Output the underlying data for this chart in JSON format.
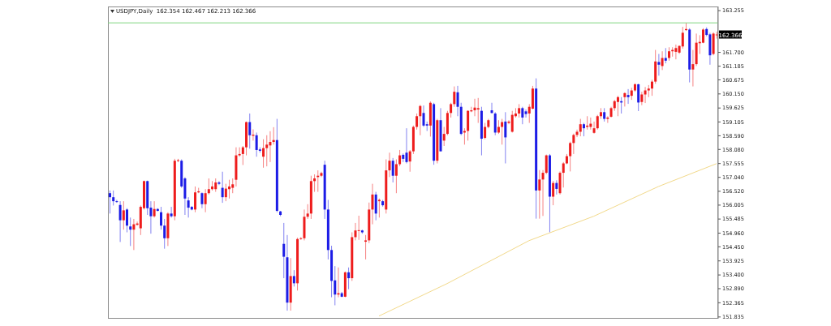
{
  "chart_data": {
    "type": "candlestick",
    "title": "USDJPY,Daily  162.354 162.467 162.213 162.366",
    "categories": [
      null,
      null,
      null,
      null,
      null,
      null,
      null,
      null,
      null,
      null,
      null,
      null,
      null,
      null,
      null,
      null,
      null,
      null,
      null,
      null,
      null,
      null,
      null,
      null,
      null,
      null,
      null,
      null,
      null,
      null,
      null,
      null,
      null,
      null,
      null,
      null,
      null,
      null,
      null,
      null,
      null,
      null,
      null,
      null,
      null,
      null,
      null,
      null,
      null,
      null,
      null,
      null,
      null,
      null,
      null,
      null,
      null,
      null,
      null,
      null,
      null,
      null,
      null,
      null,
      null,
      null,
      null,
      null,
      null,
      null,
      null,
      null,
      null,
      null,
      null,
      null,
      null,
      null,
      null,
      null,
      null,
      null,
      null,
      null,
      null,
      null,
      null,
      null,
      null,
      null,
      null,
      null,
      null,
      null,
      null,
      null,
      null,
      null,
      null,
      null,
      null,
      null,
      null,
      null,
      null,
      null,
      null,
      null,
      null,
      null,
      null,
      null,
      null,
      null,
      null,
      null,
      null,
      null,
      null,
      null,
      null,
      null,
      null,
      null,
      null,
      null,
      null,
      null,
      null,
      null,
      null,
      null,
      null,
      null,
      null,
      null,
      null,
      null,
      null,
      null,
      null,
      null,
      null,
      null,
      null,
      null,
      null,
      null,
      null,
      null,
      null,
      null,
      null,
      null,
      null,
      null,
      null,
      null,
      null,
      null,
      null,
      null,
      null,
      null,
      null,
      null,
      null,
      null,
      null,
      null,
      null,
      null,
      null,
      null,
      null,
      null,
      null,
      null,
      null
    ],
    "ohlc": [
      [
        156.45,
        156.55,
        155.69,
        156.3
      ],
      [
        156.3,
        156.55,
        155.99,
        156.15
      ],
      [
        156.15,
        156.2,
        156.09,
        156.14
      ],
      [
        156.01,
        156.15,
        154.63,
        155.44
      ],
      [
        155.44,
        156.15,
        155.09,
        155.81
      ],
      [
        155.84,
        155.89,
        154.99,
        155.24
      ],
      [
        155.21,
        155.54,
        154.48,
        155.09
      ],
      [
        155.09,
        155.49,
        154.33,
        155.29
      ],
      [
        155.27,
        155.39,
        155.24,
        155.32
      ],
      [
        155.14,
        155.99,
        154.89,
        155.94
      ],
      [
        155.89,
        156.92,
        155.84,
        156.9
      ],
      [
        156.9,
        156.92,
        155.64,
        155.89
      ],
      [
        155.91,
        156.15,
        154.94,
        155.59
      ],
      [
        155.59,
        156.15,
        155.54,
        155.86
      ],
      [
        155.86,
        155.89,
        155.77,
        155.79
      ],
      [
        155.74,
        155.94,
        155.09,
        155.24
      ],
      [
        155.24,
        155.49,
        154.38,
        154.77
      ],
      [
        154.77,
        155.74,
        154.48,
        155.69
      ],
      [
        155.69,
        155.94,
        155.54,
        155.59
      ],
      [
        155.59,
        157.73,
        155.44,
        157.66
      ],
      [
        157.66,
        157.73,
        157.61,
        157.68
      ],
      [
        157.66,
        157.71,
        156.65,
        156.7
      ],
      [
        157.0,
        157.05,
        155.64,
        156.25
      ],
      [
        156.18,
        156.3,
        155.54,
        155.91
      ],
      [
        155.94,
        155.97,
        155.81,
        155.84
      ],
      [
        155.84,
        156.7,
        155.74,
        156.48
      ],
      [
        156.48,
        156.65,
        156.45,
        156.52
      ],
      [
        156.45,
        156.48,
        155.89,
        156.04
      ],
      [
        156.04,
        156.6,
        155.74,
        156.45
      ],
      [
        156.45,
        157.0,
        156.4,
        156.6
      ],
      [
        156.6,
        156.9,
        156.55,
        156.7
      ],
      [
        156.6,
        157.0,
        156.5,
        156.85
      ],
      [
        156.85,
        156.9,
        156.75,
        156.8
      ],
      [
        156.65,
        157.25,
        156.09,
        156.3
      ],
      [
        156.3,
        156.8,
        156.15,
        156.62
      ],
      [
        156.6,
        156.95,
        156.25,
        156.7
      ],
      [
        156.65,
        157.0,
        156.45,
        156.78
      ],
      [
        156.95,
        158.16,
        156.7,
        157.86
      ],
      [
        157.86,
        158.16,
        157.81,
        157.91
      ],
      [
        157.91,
        158.21,
        157.5,
        158.16
      ],
      [
        158.16,
        159.12,
        157.86,
        159.1
      ],
      [
        159.1,
        159.42,
        158.11,
        158.61
      ],
      [
        158.59,
        158.83,
        158.41,
        158.63
      ],
      [
        158.61,
        158.71,
        157.81,
        158.06
      ],
      [
        158.08,
        158.16,
        157.96,
        158.03
      ],
      [
        157.81,
        158.46,
        157.4,
        158.13
      ],
      [
        158.13,
        158.61,
        157.45,
        158.26
      ],
      [
        158.23,
        158.76,
        157.61,
        158.36
      ],
      [
        158.36,
        158.91,
        158.26,
        158.43
      ],
      [
        158.43,
        159.22,
        155.74,
        155.79
      ],
      [
        155.77,
        155.79,
        155.59,
        155.64
      ],
      [
        154.56,
        155.34,
        153.28,
        154.08
      ],
      [
        154.06,
        154.89,
        152.07,
        152.37
      ],
      [
        152.37,
        154.03,
        152.07,
        153.36
      ],
      [
        153.36,
        153.58,
        152.97,
        153.09
      ],
      [
        153.09,
        154.79,
        152.82,
        154.74
      ],
      [
        154.74,
        154.81,
        154.71,
        154.77
      ],
      [
        154.77,
        155.84,
        154.69,
        155.57
      ],
      [
        155.57,
        156.04,
        155.49,
        155.69
      ],
      [
        155.69,
        157.1,
        155.49,
        156.9
      ],
      [
        156.9,
        157.15,
        156.5,
        157.0
      ],
      [
        157.05,
        157.3,
        156.5,
        157.1
      ],
      [
        157.1,
        157.25,
        157.05,
        157.2
      ],
      [
        157.51,
        157.66,
        155.49,
        155.84
      ],
      [
        155.84,
        156.2,
        153.98,
        154.33
      ],
      [
        154.33,
        154.49,
        152.57,
        153.18
      ],
      [
        153.2,
        153.73,
        152.27,
        152.67
      ],
      [
        152.67,
        153.68,
        152.57,
        152.72
      ],
      [
        152.72,
        152.77,
        152.57,
        152.59
      ],
      [
        152.59,
        153.53,
        152.57,
        153.5
      ],
      [
        153.5,
        153.68,
        152.87,
        153.28
      ],
      [
        153.28,
        154.99,
        153.18,
        154.81
      ],
      [
        154.81,
        155.34,
        154.69,
        155.06
      ],
      [
        155.06,
        155.61,
        154.71,
        155.07
      ],
      [
        155.06,
        155.09,
        154.94,
        154.99
      ],
      [
        154.64,
        154.89,
        153.98,
        154.69
      ],
      [
        154.69,
        156.1,
        154.59,
        155.84
      ],
      [
        155.84,
        156.8,
        155.29,
        156.4
      ],
      [
        156.4,
        156.5,
        155.44,
        155.69
      ],
      [
        156.15,
        156.25,
        155.54,
        156.2
      ],
      [
        156.15,
        156.2,
        155.95,
        156.0
      ],
      [
        155.84,
        157.71,
        155.69,
        157.3
      ],
      [
        157.3,
        157.96,
        157.05,
        157.66
      ],
      [
        157.66,
        157.76,
        156.85,
        157.1
      ],
      [
        157.1,
        157.71,
        156.45,
        157.53
      ],
      [
        157.53,
        158.06,
        157.46,
        157.86
      ],
      [
        157.88,
        157.93,
        157.61,
        157.73
      ],
      [
        157.96,
        158.87,
        157.56,
        157.61
      ],
      [
        157.63,
        158.06,
        157.25,
        158.01
      ],
      [
        158.01,
        158.97,
        157.91,
        158.92
      ],
      [
        158.92,
        159.42,
        158.82,
        159.32
      ],
      [
        159.32,
        159.74,
        158.61,
        159.7
      ],
      [
        159.44,
        159.72,
        158.92,
        158.97
      ],
      [
        159.02,
        159.12,
        158.77,
        158.97
      ],
      [
        158.97,
        159.87,
        158.56,
        159.82
      ],
      [
        159.77,
        159.82,
        157.51,
        157.66
      ],
      [
        157.66,
        159.22,
        157.56,
        159.17
      ],
      [
        159.17,
        159.62,
        158.01,
        158.01
      ],
      [
        158.41,
        158.92,
        158.21,
        158.66
      ],
      [
        158.66,
        159.52,
        158.61,
        159.44
      ],
      [
        159.44,
        159.82,
        159.27,
        159.77
      ],
      [
        159.77,
        160.43,
        159.67,
        160.23
      ],
      [
        160.21,
        160.45,
        159.32,
        159.67
      ],
      [
        159.67,
        159.82,
        158.61,
        158.66
      ],
      [
        158.71,
        158.87,
        158.26,
        158.77
      ],
      [
        158.77,
        159.54,
        158.41,
        159.52
      ],
      [
        159.5,
        159.67,
        159.47,
        159.54
      ],
      [
        159.54,
        159.97,
        159.32,
        159.64
      ],
      [
        159.57,
        160.0,
        159.07,
        159.62
      ],
      [
        159.52,
        159.67,
        157.86,
        158.48
      ],
      [
        158.51,
        159.07,
        158.46,
        158.92
      ],
      [
        158.92,
        159.22,
        158.87,
        159.17
      ],
      [
        159.54,
        159.82,
        159.42,
        159.44
      ],
      [
        159.42,
        159.47,
        158.61,
        158.71
      ],
      [
        158.71,
        159.17,
        158.66,
        158.92
      ],
      [
        158.92,
        159.22,
        158.26,
        159.1
      ],
      [
        159.12,
        159.47,
        157.56,
        158.53
      ],
      [
        159.07,
        159.17,
        159.02,
        159.12
      ],
      [
        158.74,
        159.52,
        158.71,
        159.37
      ],
      [
        159.32,
        159.62,
        159.27,
        159.42
      ],
      [
        159.42,
        159.77,
        159.27,
        159.62
      ],
      [
        159.62,
        159.67,
        159.02,
        159.27
      ],
      [
        159.5,
        159.57,
        159.27,
        159.4
      ],
      [
        159.42,
        159.77,
        159.07,
        159.67
      ],
      [
        159.6,
        160.45,
        159.58,
        160.35
      ],
      [
        160.35,
        160.73,
        155.5,
        156.55
      ],
      [
        156.55,
        157.31,
        155.5,
        156.96
      ],
      [
        156.96,
        157.31,
        155.6,
        157.21
      ],
      [
        157.21,
        157.89,
        157.16,
        157.86
      ],
      [
        157.86,
        157.91,
        154.99,
        156.32
      ],
      [
        156.32,
        156.91,
        156.0,
        156.83
      ],
      [
        156.83,
        156.93,
        156.4,
        156.61
      ],
      [
        156.45,
        157.26,
        156.4,
        157.21
      ],
      [
        157.21,
        157.61,
        156.66,
        157.56
      ],
      [
        157.56,
        157.91,
        157.53,
        157.83
      ],
      [
        157.83,
        158.37,
        157.26,
        158.32
      ],
      [
        158.32,
        158.67,
        157.91,
        158.62
      ],
      [
        158.62,
        158.82,
        158.54,
        158.74
      ],
      [
        158.74,
        159.22,
        158.57,
        159.02
      ],
      [
        159.02,
        159.07,
        158.57,
        158.87
      ],
      [
        158.92,
        159.32,
        158.82,
        158.97
      ],
      [
        158.92,
        159.27,
        158.82,
        159.04
      ],
      [
        158.7,
        159.12,
        158.67,
        158.87
      ],
      [
        158.87,
        159.37,
        158.82,
        159.32
      ],
      [
        159.32,
        159.62,
        159.22,
        159.47
      ],
      [
        159.47,
        159.62,
        159.12,
        159.22
      ],
      [
        159.22,
        159.32,
        159.07,
        159.27
      ],
      [
        159.3,
        159.67,
        159.27,
        159.62
      ],
      [
        159.62,
        159.93,
        159.52,
        159.88
      ],
      [
        159.85,
        160.08,
        159.32,
        160.03
      ],
      [
        159.88,
        160.03,
        159.42,
        159.83
      ],
      [
        160.03,
        160.21,
        159.68,
        160.18
      ],
      [
        160.11,
        160.33,
        159.78,
        160.03
      ],
      [
        160.08,
        160.38,
        159.93,
        160.28
      ],
      [
        160.28,
        160.55,
        160.23,
        160.51
      ],
      [
        160.51,
        160.53,
        159.51,
        159.83
      ],
      [
        159.85,
        160.23,
        159.73,
        160.13
      ],
      [
        160.13,
        160.41,
        159.81,
        160.28
      ],
      [
        160.28,
        160.48,
        160.03,
        160.35
      ],
      [
        160.35,
        160.68,
        160.08,
        160.61
      ],
      [
        160.61,
        161.79,
        160.53,
        161.36
      ],
      [
        161.34,
        161.64,
        160.83,
        161.24
      ],
      [
        161.19,
        161.74,
        161.04,
        161.49
      ],
      [
        161.49,
        161.86,
        161.29,
        161.39
      ],
      [
        161.49,
        161.89,
        161.39,
        161.74
      ],
      [
        161.74,
        161.89,
        161.54,
        161.79
      ],
      [
        161.72,
        161.99,
        161.44,
        161.86
      ],
      [
        161.69,
        161.96,
        161.64,
        161.94
      ],
      [
        161.92,
        162.65,
        161.84,
        162.43
      ],
      [
        162.53,
        162.8,
        162.5,
        162.57
      ],
      [
        162.55,
        162.6,
        160.58,
        161.06
      ],
      [
        161.06,
        161.79,
        160.43,
        161.26
      ],
      [
        161.26,
        162.4,
        161.19,
        162.06
      ],
      [
        162.04,
        162.34,
        161.64,
        162.09
      ],
      [
        162.06,
        162.6,
        162.04,
        162.55
      ],
      [
        162.57,
        162.63,
        162.3,
        162.35
      ],
      [
        162.37,
        162.43,
        161.24,
        161.59
      ],
      [
        161.64,
        162.45,
        161.59,
        162.4
      ],
      [
        162.354,
        162.467,
        162.213,
        162.366
      ]
    ],
    "colors": [
      "#1c1ce6",
      "#1c1ce6",
      "#1c1ce6",
      "#1c1ce6",
      "#ee1c1c",
      "#1c1ce6",
      "#1c1ce6",
      "#ee1c1c",
      "#ee1c1c",
      "#ee1c1c",
      "#ee1c1c",
      "#1c1ce6",
      "#1c1ce6",
      "#ee1c1c",
      "#1c1ce6",
      "#1c1ce6",
      "#1c1ce6",
      "#ee1c1c",
      "#1c1ce6",
      "#ee1c1c",
      "#ee1c1c",
      "#1c1ce6",
      "#1c1ce6",
      "#1c1ce6",
      "#1c1ce6",
      "#ee1c1c",
      "#ee1c1c",
      "#1c1ce6",
      "#ee1c1c",
      "#ee1c1c",
      "#ee1c1c",
      "#ee1c1c",
      "#1c1ce6",
      "#1c1ce6",
      "#ee1c1c",
      "#ee1c1c",
      "#ee1c1c",
      "#ee1c1c",
      "#ee1c1c",
      "#ee1c1c",
      "#ee1c1c",
      "#1c1ce6",
      "#ee1c1c",
      "#1c1ce6",
      "#1c1ce6",
      "#ee1c1c",
      "#ee1c1c",
      "#ee1c1c",
      "#ee1c1c",
      "#1c1ce6",
      "#1c1ce6",
      "#1c1ce6",
      "#1c1ce6",
      "#ee1c1c",
      "#1c1ce6",
      "#ee1c1c",
      "#ee1c1c",
      "#ee1c1c",
      "#ee1c1c",
      "#ee1c1c",
      "#ee1c1c",
      "#ee1c1c",
      "#ee1c1c",
      "#1c1ce6",
      "#1c1ce6",
      "#1c1ce6",
      "#1c1ce6",
      "#ee1c1c",
      "#1c1ce6",
      "#ee1c1c",
      "#1c1ce6",
      "#ee1c1c",
      "#ee1c1c",
      "#ee1c1c",
      "#1c1ce6",
      "#ee1c1c",
      "#ee1c1c",
      "#ee1c1c",
      "#1c1ce6",
      "#ee1c1c",
      "#1c1ce6",
      "#ee1c1c",
      "#ee1c1c",
      "#1c1ce6",
      "#ee1c1c",
      "#ee1c1c",
      "#1c1ce6",
      "#1c1ce6",
      "#ee1c1c",
      "#ee1c1c",
      "#ee1c1c",
      "#ee1c1c",
      "#1c1ce6",
      "#1c1ce6",
      "#ee1c1c",
      "#1c1ce6",
      "#ee1c1c",
      "#1c1ce6",
      "#ee1c1c",
      "#ee1c1c",
      "#ee1c1c",
      "#ee1c1c",
      "#1c1ce6",
      "#1c1ce6",
      "#ee1c1c",
      "#ee1c1c",
      "#ee1c1c",
      "#ee1c1c",
      "#ee1c1c",
      "#1c1ce6",
      "#ee1c1c",
      "#ee1c1c",
      "#1c1ce6",
      "#1c1ce6",
      "#ee1c1c",
      "#ee1c1c",
      "#1c1ce6",
      "#ee1c1c",
      "#ee1c1c",
      "#ee1c1c",
      "#ee1c1c",
      "#1c1ce6",
      "#1c1ce6",
      "#ee1c1c",
      "#ee1c1c",
      "#1c1ce6",
      "#ee1c1c",
      "#ee1c1c",
      "#ee1c1c",
      "#1c1ce6",
      "#ee1c1c",
      "#1c1ce6",
      "#ee1c1c",
      "#ee1c1c",
      "#ee1c1c",
      "#ee1c1c",
      "#ee1c1c",
      "#ee1c1c",
      "#ee1c1c",
      "#1c1ce6",
      "#ee1c1c",
      "#ee1c1c",
      "#ee1c1c",
      "#ee1c1c",
      "#ee1c1c",
      "#1c1ce6",
      "#ee1c1c",
      "#ee1c1c",
      "#ee1c1c",
      "#ee1c1c",
      "#1c1ce6",
      "#ee1c1c",
      "#1c1ce6",
      "#ee1c1c",
      "#ee1c1c",
      "#1c1ce6",
      "#ee1c1c",
      "#ee1c1c",
      "#ee1c1c",
      "#ee1c1c",
      "#ee1c1c",
      "#1c1ce6",
      "#ee1c1c",
      "#1c1ce6",
      "#ee1c1c",
      "#ee1c1c",
      "#ee1c1c",
      "#ee1c1c",
      "#ee1c1c",
      "#ee1c1c",
      "#1c1ce6",
      "#ee1c1c",
      "#ee1c1c",
      "#ee1c1c",
      "#ee1c1c",
      "#1c1ce6",
      "#1c1ce6",
      "#ee1c1c",
      "#ee1c1c"
    ],
    "series": [
      {
        "type": "line",
        "color": "#f2d98a",
        "values": [
          null,
          null,
          null,
          null,
          null,
          null,
          null,
          null,
          null,
          null,
          null,
          null,
          null,
          null,
          null,
          null,
          null,
          null,
          null,
          null,
          null,
          null,
          null,
          null,
          null,
          null,
          null,
          null,
          null,
          null,
          null,
          null,
          null,
          null,
          null,
          null,
          null,
          null,
          null,
          null,
          null,
          null,
          null,
          null,
          null,
          null,
          null,
          null,
          null,
          null,
          null,
          null,
          null,
          null,
          null,
          null,
          null,
          null,
          null,
          null,
          null,
          null,
          null,
          null,
          null,
          null,
          null,
          null,
          null,
          null,
          null,
          null,
          null,
          null,
          null,
          null,
          null,
          null,
          null,
          151.87,
          null,
          null,
          null,
          null,
          null,
          null,
          null,
          null,
          null,
          null,
          null,
          null,
          null,
          null,
          null,
          null,
          null,
          null,
          null,
          153.08,
          null,
          null,
          null,
          null,
          null,
          null,
          null,
          null,
          null,
          null,
          null,
          null,
          null,
          null,
          null,
          null,
          null,
          null,
          null,
          null,
          null,
          null,
          null,
          154.68,
          null,
          null,
          null,
          null,
          null,
          null,
          null,
          null,
          null,
          null,
          null,
          null,
          null,
          null,
          null,
          null,
          null,
          null,
          155.59,
          null,
          null,
          null,
          null,
          null,
          null,
          null,
          null,
          null,
          null,
          null,
          null,
          null,
          null,
          null,
          null,
          null,
          null,
          156.7,
          null,
          null,
          null,
          null,
          null,
          null,
          null,
          null,
          null,
          null,
          null,
          null,
          null,
          null,
          null,
          null,
          157.55
        ]
      }
    ],
    "ref_lines": [
      {
        "axis": "y",
        "value": 162.8,
        "color": "#7fd67f"
      }
    ],
    "annotations": [
      {
        "text": "162.366",
        "y": 162.366
      }
    ],
    "ylim": [
      151.77,
      163.41
    ],
    "yticks": [
      {
        "value": 151.835,
        "label": "151.835"
      },
      {
        "value": 152.365,
        "label": "152.365"
      },
      {
        "value": 152.89,
        "label": "152.890"
      },
      {
        "value": 153.4,
        "label": "153.400"
      },
      {
        "value": 153.925,
        "label": "153.925"
      },
      {
        "value": 154.45,
        "label": "154.450"
      },
      {
        "value": 154.96,
        "label": "154.960"
      },
      {
        "value": 155.485,
        "label": "155.485"
      },
      {
        "value": 156.005,
        "label": "156.005"
      },
      {
        "value": 156.52,
        "label": "156.520"
      },
      {
        "value": 157.04,
        "label": "157.040"
      },
      {
        "value": 157.555,
        "label": "157.555"
      },
      {
        "value": 158.08,
        "label": "158.080"
      },
      {
        "value": 158.59,
        "label": "158.590"
      },
      {
        "value": 159.105,
        "label": "159.105"
      },
      {
        "value": 159.625,
        "label": "159.625"
      },
      {
        "value": 160.15,
        "label": "160.150"
      },
      {
        "value": 160.675,
        "label": "160.675"
      },
      {
        "value": 161.185,
        "label": "161.185"
      },
      {
        "value": 161.7,
        "label": "161.700"
      },
      {
        "value": 163.255,
        "label": "163.255"
      }
    ],
    "tick_labels": "y"
  }
}
